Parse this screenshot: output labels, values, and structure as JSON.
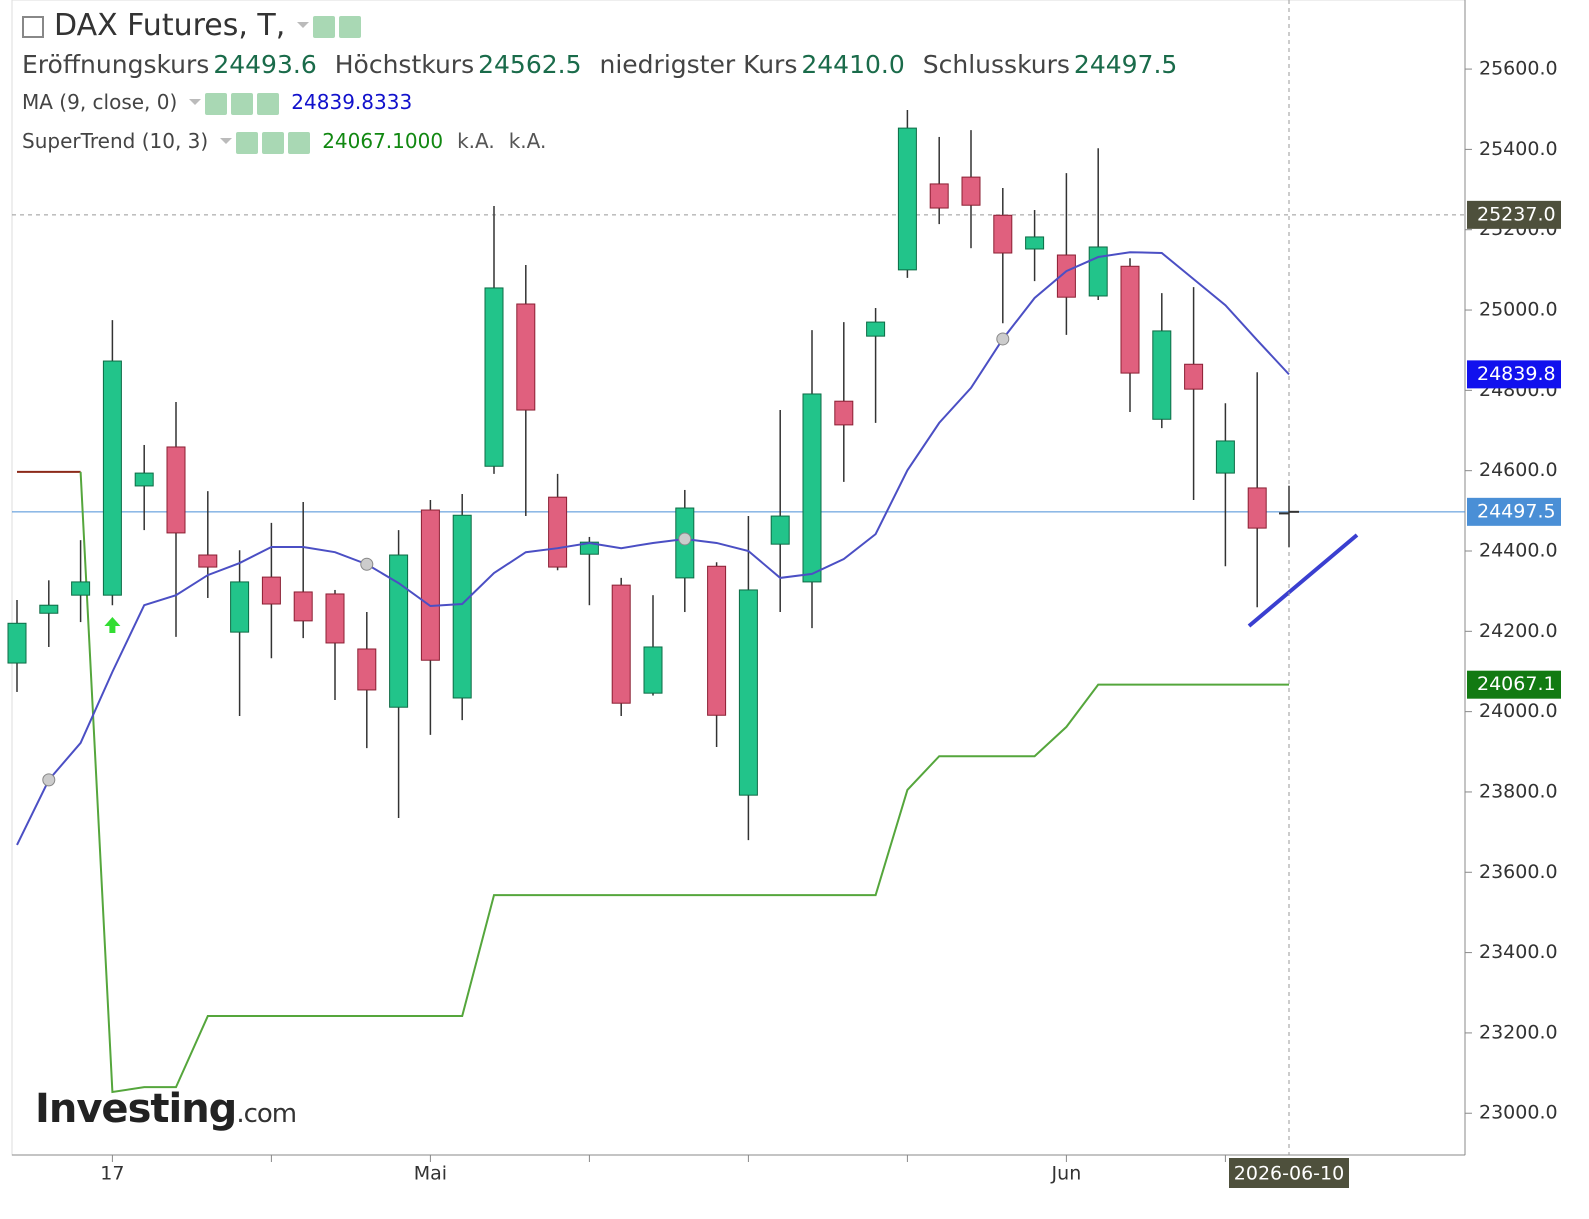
{
  "chart_data": {
    "type": "candlestick",
    "title": "DAX Futures, T,",
    "ohlc_legend": [
      {
        "label": "Eröffnungskurs",
        "value": "24493.6"
      },
      {
        "label": "Höchstkurs",
        "value": "24562.5"
      },
      {
        "label": "niedrigster Kurs",
        "value": "24410.0"
      },
      {
        "label": "Schlusskurs",
        "value": "24497.5"
      }
    ],
    "categories": [
      null,
      null,
      null,
      "17",
      null,
      null,
      null,
      null,
      null,
      null,
      null,
      null,
      null,
      "Mai",
      null,
      null,
      null,
      null,
      null,
      null,
      null,
      null,
      null,
      null,
      null,
      null,
      null,
      null,
      null,
      null,
      null,
      null,
      null,
      "Jun",
      null,
      null,
      null,
      null,
      null,
      null,
      "2026-06-10"
    ],
    "open": [
      24121,
      24245,
      24290,
      24290,
      24562,
      24659,
      24390,
      24198,
      24335,
      24298,
      24293,
      24156,
      24011,
      24502,
      24034,
      24611,
      25015,
      24534,
      24392,
      24315,
      24046,
      24333,
      24362,
      23792,
      24417,
      24323,
      24773,
      24935,
      25100,
      25314,
      25331,
      25236,
      25152,
      25137,
      25035,
      25109,
      24728,
      24865,
      24594,
      24557,
      24493.6
    ],
    "high": [
      24278,
      24327,
      24427,
      24975,
      24664,
      24771,
      24549,
      24402,
      24470,
      24522,
      24303,
      24248,
      24452,
      24527,
      24542,
      25259,
      25112,
      24592,
      24435,
      24333,
      24290,
      24552,
      24372,
      24487,
      24751,
      24950,
      24970,
      25005,
      25498,
      25431,
      25448,
      25304,
      25249,
      25341,
      25403,
      25129,
      25042,
      25057,
      24768,
      24845,
      24562.5
    ],
    "low": [
      24049,
      24161,
      24223,
      24265,
      24452,
      24186,
      24283,
      23989,
      24133,
      24183,
      24029,
      23909,
      23735,
      23942,
      23979,
      24592,
      24487,
      24352,
      24265,
      23989,
      24040,
      24248,
      23912,
      23680,
      24248,
      24208,
      24572,
      24719,
      25080,
      25214,
      25154,
      24967,
      25072,
      24938,
      25025,
      24746,
      24706,
      24527,
      24362,
      24260,
      24410.0
    ],
    "close": [
      24220,
      24265,
      24323,
      24873,
      24594,
      24445,
      24360,
      24323,
      24268,
      24226,
      24171,
      24054,
      24390,
      24128,
      24489,
      25055,
      24751,
      24360,
      24422,
      24021,
      24161,
      24507,
      23991,
      24303,
      24487,
      24791,
      24714,
      24970,
      25453,
      25254,
      25261,
      25142,
      25182,
      25032,
      25157,
      24843,
      24948,
      24803,
      24674,
      24457,
      24497.5
    ],
    "up_color": "#22c48a",
    "down_color": "#e0607e",
    "ma": {
      "name": "MA (9, close, 0)",
      "legend_value": "24839.8333",
      "color": "#4b4fc4",
      "values": [
        23668,
        23830,
        23922,
        24099,
        24265,
        24290,
        24340,
        24370,
        24410,
        24410,
        24397,
        24367,
        24320,
        24263,
        24268,
        24345,
        24397,
        24407,
        24420,
        24407,
        24420,
        24430,
        24420,
        24400,
        24333,
        24343,
        24380,
        24442,
        24601,
        24719,
        24806,
        24928,
        25030,
        25097,
        25132,
        25144,
        25142,
        25077,
        25012,
        24925,
        24839.8
      ]
    },
    "supertrend": {
      "name": "SuperTrend (10, 3)",
      "legend_value": "24067.1000",
      "legend_extra": [
        "k.A.",
        "k.A."
      ],
      "up_color": "#55a63c",
      "down_color": "#8c2a1a",
      "down": [
        24597,
        24597,
        24597,
        null,
        null,
        null,
        null,
        null,
        null,
        null,
        null,
        null,
        null,
        null,
        null,
        null,
        null,
        null,
        null,
        null,
        null,
        null,
        null,
        null,
        null,
        null,
        null,
        null,
        null,
        null,
        null,
        null,
        null,
        null,
        null,
        null,
        null,
        null,
        null,
        null,
        null
      ],
      "up": [
        null,
        null,
        24597,
        23053,
        23065,
        23065,
        23242,
        23242,
        23242,
        23242,
        23242,
        23242,
        23242,
        23242,
        23242,
        23543,
        23543,
        23543,
        23543,
        23543,
        23543,
        23543,
        23543,
        23543,
        23543,
        23543,
        23543,
        23543,
        23805,
        23889,
        23889,
        23889,
        23889,
        23962,
        24067.1,
        24067.1,
        24067.1,
        24067.1,
        24067.1,
        24067.1,
        24067.1
      ]
    },
    "price_tags": [
      {
        "value": 25237,
        "label": "25237.0",
        "color": "#4e503c"
      },
      {
        "value": 24839.8,
        "label": "24839.8",
        "color": "#1111ee"
      },
      {
        "value": 24497.5,
        "label": "24497.5",
        "color": "#4a8fd6"
      },
      {
        "value": 24067.1,
        "label": "24067.1",
        "color": "#127a12"
      }
    ],
    "ylim": [
      22896,
      25772
    ],
    "yticks": [
      {
        "value": 23000,
        "label": "23000.0"
      },
      {
        "value": 23200,
        "label": "23200.0"
      },
      {
        "value": 23400,
        "label": "23400.0"
      },
      {
        "value": 23600,
        "label": "23600.0"
      },
      {
        "value": 23800,
        "label": "23800.0"
      },
      {
        "value": 24000,
        "label": "24000.0"
      },
      {
        "value": 24200,
        "label": "24200.0"
      },
      {
        "value": 24400,
        "label": "24400.0"
      },
      {
        "value": 24600,
        "label": "24600.0"
      },
      {
        "value": 24800,
        "label": "24800.0"
      },
      {
        "value": 25000,
        "label": "25000.0"
      },
      {
        "value": 25200,
        "label": "25200.0"
      },
      {
        "value": 25400,
        "label": "25400.0"
      },
      {
        "value": 25600,
        "label": "25600.0"
      }
    ],
    "watermark": "Investing",
    "watermark_suffix": ".com"
  }
}
